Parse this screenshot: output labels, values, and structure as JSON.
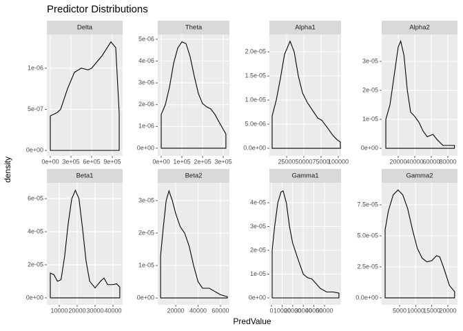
{
  "title": "Predictor Distributions",
  "x_label": "PredValue",
  "y_label": "density",
  "chart_data": [
    {
      "type": "line",
      "title": "Delta",
      "color": "#000000",
      "grid": true,
      "x": [
        0,
        0,
        100000,
        150000,
        250000,
        350000,
        450000,
        550000,
        600000,
        750000,
        880000,
        950000,
        1000000,
        1000000
      ],
      "values": [
        0,
        4.2e-07,
        4.6e-07,
        5e-07,
        7.5e-07,
        9.5e-07,
        1e-06,
        9.8e-07,
        1e-06,
        1.15e-06,
        1.32e-06,
        1.25e-06,
        4.5e-07,
        0
      ],
      "xlim": [
        -50000,
        1050000
      ],
      "ylim": [
        -6.6e-08,
        1.41e-06
      ],
      "xticks": [
        {
          "value": 0,
          "label": "0e+00"
        },
        {
          "value": 300000,
          "label": "3e+05"
        },
        {
          "value": 600000,
          "label": "6e+05"
        },
        {
          "value": 900000,
          "label": "9e+05"
        }
      ],
      "yticks": [
        {
          "value": 0,
          "label": "0e+00"
        },
        {
          "value": 5e-07,
          "label": "5e-07"
        },
        {
          "value": 1e-06,
          "label": "1e-06"
        }
      ]
    },
    {
      "type": "line",
      "title": "Theta",
      "color": "#000000",
      "grid": true,
      "x": [
        0,
        0,
        20000,
        40000,
        60000,
        80000,
        100000,
        120000,
        140000,
        160000,
        180000,
        200000,
        220000,
        240000,
        260000,
        280000,
        313000,
        313000
      ],
      "values": [
        0,
        1.55e-06,
        2e-06,
        2.8e-06,
        3.9e-06,
        4.6e-06,
        4.88e-06,
        4.8e-06,
        4.2e-06,
        3.3e-06,
        2.5e-06,
        2.05e-06,
        1.9e-06,
        1.8e-06,
        1.55e-06,
        1.2e-06,
        6.5e-07,
        0
      ],
      "xlim": [
        -16667,
        330000
      ],
      "ylim": [
        -3.5e-07,
        5.22e-06
      ],
      "xticks": [
        {
          "value": 0,
          "label": "0e+00"
        },
        {
          "value": 100000,
          "label": "1e+05"
        },
        {
          "value": 200000,
          "label": "2e+05"
        },
        {
          "value": 300000,
          "label": "3e+05"
        }
      ],
      "yticks": [
        {
          "value": 0,
          "label": "0e+00"
        },
        {
          "value": 1e-06,
          "label": "1e-06"
        },
        {
          "value": 2e-06,
          "label": "2e-06"
        },
        {
          "value": 3e-06,
          "label": "3e-06"
        },
        {
          "value": 4e-06,
          "label": "4e-06"
        },
        {
          "value": 5e-06,
          "label": "5e-06"
        }
      ]
    },
    {
      "type": "line",
      "title": "Alpha1",
      "color": "#000000",
      "grid": true,
      "x": [
        4000,
        4000,
        10000,
        16000,
        22000,
        30000,
        36000,
        42000,
        48000,
        55000,
        62000,
        70000,
        76000,
        84000,
        92000,
        98000,
        103000,
        103000
      ],
      "values": [
        0,
        6.7e-06,
        1e-05,
        1.45e-05,
        1.95e-05,
        2.22e-05,
        2e-05,
        1.5e-05,
        1.15e-05,
        9.5e-06,
        8e-06,
        6.3e-06,
        5.8e-06,
        4.3e-06,
        2.7e-06,
        1.8e-06,
        1.3e-06,
        0
      ],
      "xlim": [
        0,
        104000
      ],
      "ylim": [
        -1.57e-06,
        2.36e-05
      ],
      "xticks": [
        25000,
        50000,
        75000,
        100000
      ],
      "yticks": [
        {
          "value": 0,
          "label": "0.0e+00"
        },
        {
          "value": 5e-06,
          "label": "5.0e-06"
        },
        {
          "value": 1e-05,
          "label": "1.0e-05"
        },
        {
          "value": 1.5e-05,
          "label": "1.5e-05"
        },
        {
          "value": 2e-05,
          "label": "2.0e-05"
        }
      ]
    },
    {
      "type": "line",
      "title": "Alpha2",
      "color": "#000000",
      "grid": true,
      "x": [
        5000,
        5000,
        10000,
        15000,
        20000,
        23000,
        27000,
        31000,
        35000,
        40000,
        45000,
        50000,
        55000,
        62000,
        67000,
        74000,
        80000,
        88000,
        88000
      ],
      "values": [
        0,
        1e-05,
        1.5e-05,
        2.5e-05,
        3.5e-05,
        3.7e-05,
        3.2e-05,
        2e-05,
        1.25e-05,
        1.1e-05,
        9e-06,
        6e-06,
        4e-06,
        4.8e-06,
        3e-06,
        1e-06,
        1e-06,
        1e-06,
        0
      ],
      "xlim": [
        0,
        91667
      ],
      "ylim": [
        -2.6e-06,
        3.93e-05
      ],
      "xticks": [
        20000,
        40000,
        60000,
        80000
      ],
      "yticks": [
        {
          "value": 0,
          "label": "0e+00"
        },
        {
          "value": 1e-05,
          "label": "1e-05"
        },
        {
          "value": 2e-05,
          "label": "2e-05"
        },
        {
          "value": 3e-05,
          "label": "3e-05"
        }
      ]
    },
    {
      "type": "line",
      "title": "Beta1",
      "color": "#000000",
      "grid": true,
      "x": [
        5000,
        5000,
        7000,
        9000,
        11000,
        13000,
        15000,
        17000,
        19000,
        21000,
        23000,
        25000,
        27000,
        30000,
        33000,
        35000,
        37000,
        40000,
        42000,
        43800,
        43800
      ],
      "values": [
        0,
        1.5e-05,
        1.4e-05,
        1e-05,
        1.1e-05,
        2.5e-05,
        4.5e-05,
        6e-05,
        6.5e-05,
        6e-05,
        4.2e-05,
        2.2e-05,
        1e-05,
        6e-06,
        1e-05,
        1.2e-05,
        8e-06,
        8e-06,
        8.5e-06,
        6.5e-06,
        0
      ],
      "xlim": [
        3077,
        45385
      ],
      "ylim": [
        -4.2e-06,
        6.96e-05
      ],
      "xticks": [
        10000,
        20000,
        30000,
        40000
      ],
      "yticks": [
        {
          "value": 0,
          "label": "0e+00"
        },
        {
          "value": 2e-05,
          "label": "2e-05"
        },
        {
          "value": 4e-05,
          "label": "4e-05"
        },
        {
          "value": 6e-05,
          "label": "6e-05"
        }
      ]
    },
    {
      "type": "line",
      "title": "Beta2",
      "color": "#000000",
      "grid": true,
      "x": [
        6500,
        6500,
        9000,
        11500,
        14000,
        17000,
        20000,
        24000,
        28000,
        32000,
        36000,
        40000,
        44000,
        50000,
        55000,
        60000,
        66200,
        66200
      ],
      "values": [
        0,
        1.3e-05,
        2.2e-05,
        3e-05,
        3.3e-05,
        3e-05,
        2.6e-05,
        2.2e-05,
        2e-05,
        1.6e-05,
        1e-05,
        5e-06,
        3e-06,
        3e-06,
        2e-06,
        1e-06,
        4e-07,
        0
      ],
      "xlim": [
        4000,
        68000
      ],
      "ylim": [
        -2.1e-06,
        3.55e-05
      ],
      "xticks": [
        20000,
        40000,
        60000
      ],
      "yticks": [
        {
          "value": 0,
          "label": "0e+00"
        },
        {
          "value": 1e-05,
          "label": "1e-05"
        },
        {
          "value": 2e-05,
          "label": "2e-05"
        },
        {
          "value": 3e-05,
          "label": "3e-05"
        }
      ]
    },
    {
      "type": "line",
      "title": "Gamma1",
      "color": "#000000",
      "grid": true,
      "x": [
        650,
        650,
        3000,
        6000,
        9000,
        11000,
        14000,
        17000,
        20000,
        23000,
        26000,
        30000,
        34000,
        38000,
        42000,
        46000,
        52000,
        58000,
        63600,
        63600
      ],
      "values": [
        0,
        2e-05,
        3e-05,
        4e-05,
        4.45e-05,
        4.5e-05,
        4e-05,
        3e-05,
        2.3e-05,
        1.9e-05,
        1.5e-05,
        1e-05,
        8.5e-06,
        8e-06,
        6e-06,
        4e-06,
        2.5e-06,
        2.5e-06,
        2e-06,
        0
      ],
      "xlim": [
        -1950,
        65600
      ],
      "ylim": [
        -2.9e-06,
        4.84e-05
      ],
      "xticks": [
        0,
        10000,
        20000,
        30000,
        40000,
        50000
      ],
      "yticks": [
        {
          "value": 0,
          "label": "0e+00"
        },
        {
          "value": 1e-05,
          "label": "1e-05"
        },
        {
          "value": 2e-05,
          "label": "2e-05"
        },
        {
          "value": 3e-05,
          "label": "3e-05"
        },
        {
          "value": 4e-05,
          "label": "4e-05"
        }
      ]
    },
    {
      "type": "line",
      "title": "Gamma2",
      "color": "#000000",
      "grid": true,
      "x": [
        500,
        500,
        1500,
        3000,
        4500,
        6000,
        7500,
        9000,
        10500,
        12000,
        13500,
        15000,
        16500,
        17500,
        19000,
        20500,
        22100,
        22100
      ],
      "values": [
        0,
        5.5e-05,
        7e-05,
        8.3e-05,
        8.7e-05,
        8.3e-05,
        7.2e-05,
        5.5e-05,
        4e-05,
        3.2e-05,
        2.9e-05,
        3e-05,
        3.4e-05,
        3.3e-05,
        2.2e-05,
        1e-05,
        5e-06,
        0
      ],
      "xlim": [
        -570,
        23000
      ],
      "ylim": [
        -5.6e-06,
        9.28e-05
      ],
      "xticks": [
        5000,
        10000,
        15000,
        20000
      ],
      "yticks": [
        {
          "value": 0,
          "label": "0.0e+00"
        },
        {
          "value": 2.5e-05,
          "label": "2.5e-05"
        },
        {
          "value": 5e-05,
          "label": "5.0e-05"
        },
        {
          "value": 7.5e-05,
          "label": "7.5e-05"
        }
      ]
    }
  ]
}
